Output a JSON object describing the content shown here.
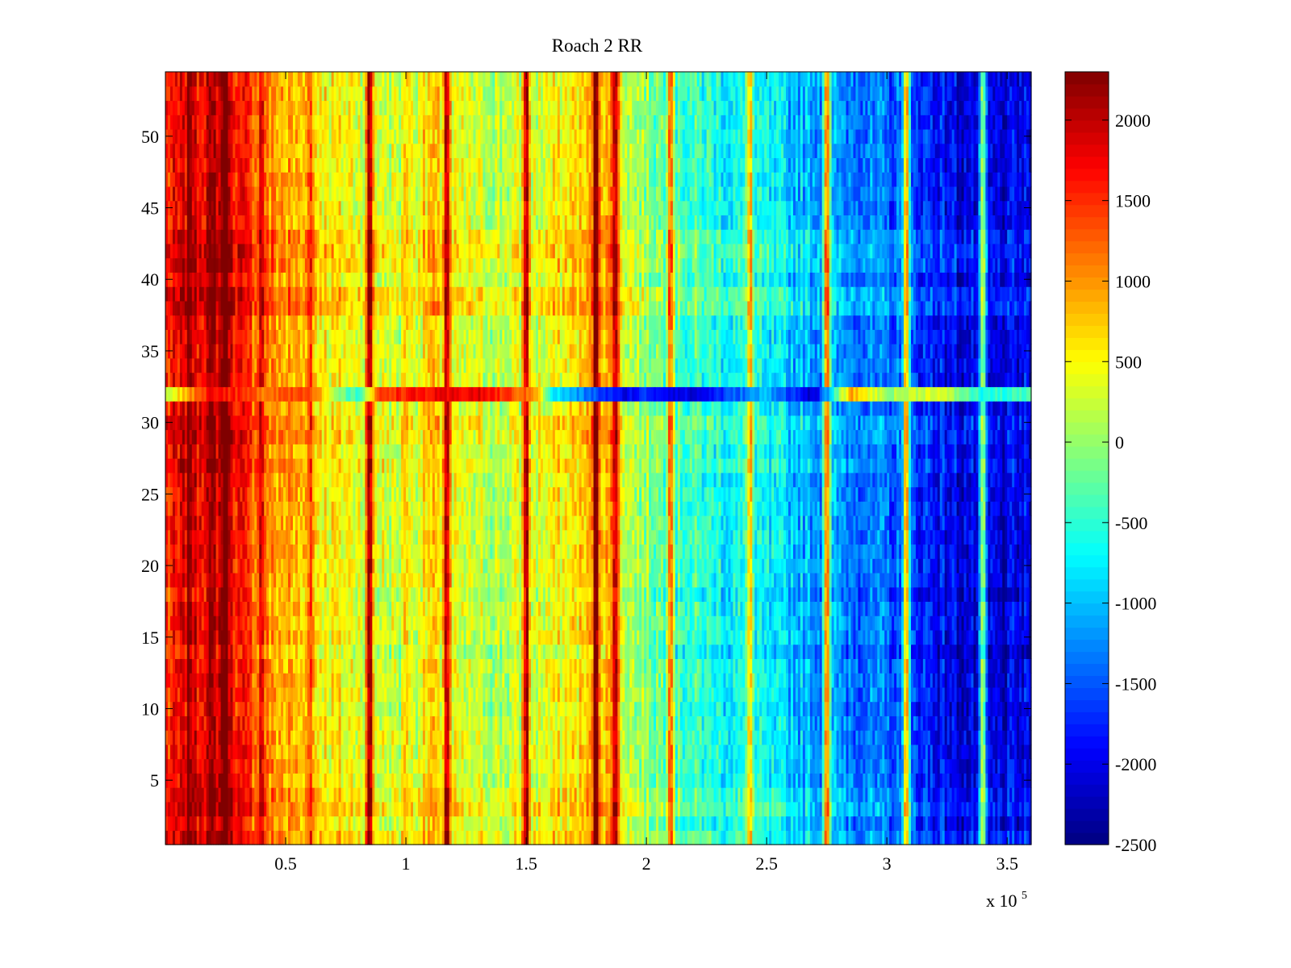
{
  "chart_data": {
    "type": "heatmap",
    "title": "Roach 2 RR",
    "xlabel": "",
    "ylabel": "",
    "x_exponent_label": {
      "base": "x 10",
      "exponent": "5"
    },
    "xlim": [
      0.0,
      3.6
    ],
    "ylim": [
      0.5,
      54.5
    ],
    "rows": 54,
    "columns": 360,
    "x_ticks": [
      0.5,
      1,
      1.5,
      2,
      2.5,
      3,
      3.5
    ],
    "x_tick_labels": [
      "0.5",
      "1",
      "1.5",
      "2",
      "2.5",
      "3",
      "3.5"
    ],
    "y_ticks": [
      5,
      10,
      15,
      20,
      25,
      30,
      35,
      40,
      45,
      50
    ],
    "y_tick_labels": [
      "5",
      "10",
      "15",
      "20",
      "25",
      "30",
      "35",
      "40",
      "45",
      "50"
    ],
    "colormap": "jet",
    "clim": [
      -2500,
      2300
    ],
    "colorbar_ticks": [
      2000,
      1500,
      1000,
      500,
      0,
      -500,
      -1000,
      -1500,
      -2000,
      -2500
    ],
    "colorbar_tick_labels": [
      "2000",
      "1500",
      "1000",
      "500",
      "0",
      "-500",
      "-1000",
      "-1500",
      "-2000",
      "-2500"
    ],
    "column_profile": [
      [
        0.0,
        1500
      ],
      [
        0.1,
        1750
      ],
      [
        0.2,
        2000
      ],
      [
        0.28,
        1800
      ],
      [
        0.4,
        1100
      ],
      [
        0.5,
        900
      ],
      [
        0.7,
        500
      ],
      [
        0.9,
        350
      ],
      [
        1.0,
        150
      ],
      [
        1.1,
        700
      ],
      [
        1.2,
        300
      ],
      [
        1.4,
        150
      ],
      [
        1.6,
        400
      ],
      [
        1.75,
        700
      ],
      [
        1.82,
        900
      ],
      [
        1.95,
        100
      ],
      [
        2.1,
        -300
      ],
      [
        2.3,
        -600
      ],
      [
        2.5,
        -800
      ],
      [
        2.7,
        -1100
      ],
      [
        2.9,
        -1300
      ],
      [
        3.1,
        -1600
      ],
      [
        3.3,
        -2000
      ],
      [
        3.45,
        -2100
      ],
      [
        3.6,
        -2000
      ]
    ],
    "row_modifiers": [
      [
        1,
        200
      ],
      [
        3,
        250
      ],
      [
        4,
        150
      ],
      [
        10,
        -100
      ],
      [
        14,
        -200
      ],
      [
        18,
        -150
      ],
      [
        27,
        150
      ],
      [
        29,
        150
      ],
      [
        30,
        200
      ],
      [
        38,
        300
      ],
      [
        39,
        300
      ],
      [
        41,
        200
      ],
      [
        42,
        250
      ],
      [
        43,
        200
      ]
    ],
    "anomalous_row": {
      "row": 32,
      "profile": [
        [
          0.0,
          200
        ],
        [
          0.2,
          1800
        ],
        [
          0.4,
          1200
        ],
        [
          0.6,
          1500
        ],
        [
          0.7,
          0
        ],
        [
          0.8,
          -500
        ],
        [
          0.9,
          1500
        ],
        [
          1.3,
          1800
        ],
        [
          1.55,
          1000
        ],
        [
          1.6,
          -700
        ],
        [
          1.9,
          -2000
        ],
        [
          2.0,
          -1700
        ],
        [
          2.2,
          -2100
        ],
        [
          2.5,
          -1000
        ],
        [
          2.7,
          -2200
        ],
        [
          2.85,
          900
        ],
        [
          3.0,
          0
        ],
        [
          3.2,
          400
        ],
        [
          3.4,
          -600
        ],
        [
          3.6,
          -400
        ]
      ]
    },
    "streaks": [
      {
        "x": 0.1,
        "delta": 500
      },
      {
        "x": 0.25,
        "delta": 900
      },
      {
        "x": 0.4,
        "delta": 700
      },
      {
        "x": 0.6,
        "delta": 700
      },
      {
        "x": 0.85,
        "delta": 1600
      },
      {
        "x": 1.0,
        "delta": 600
      },
      {
        "x": 1.17,
        "delta": 1500
      },
      {
        "x": 1.5,
        "delta": 1700
      },
      {
        "x": 1.79,
        "delta": 1500
      },
      {
        "x": 1.87,
        "delta": 1400
      },
      {
        "x": 2.1,
        "delta": 1600
      },
      {
        "x": 2.43,
        "delta": 1400
      },
      {
        "x": 2.75,
        "delta": 2200
      },
      {
        "x": 3.08,
        "delta": 2300
      },
      {
        "x": 3.4,
        "delta": 1800
      }
    ]
  }
}
